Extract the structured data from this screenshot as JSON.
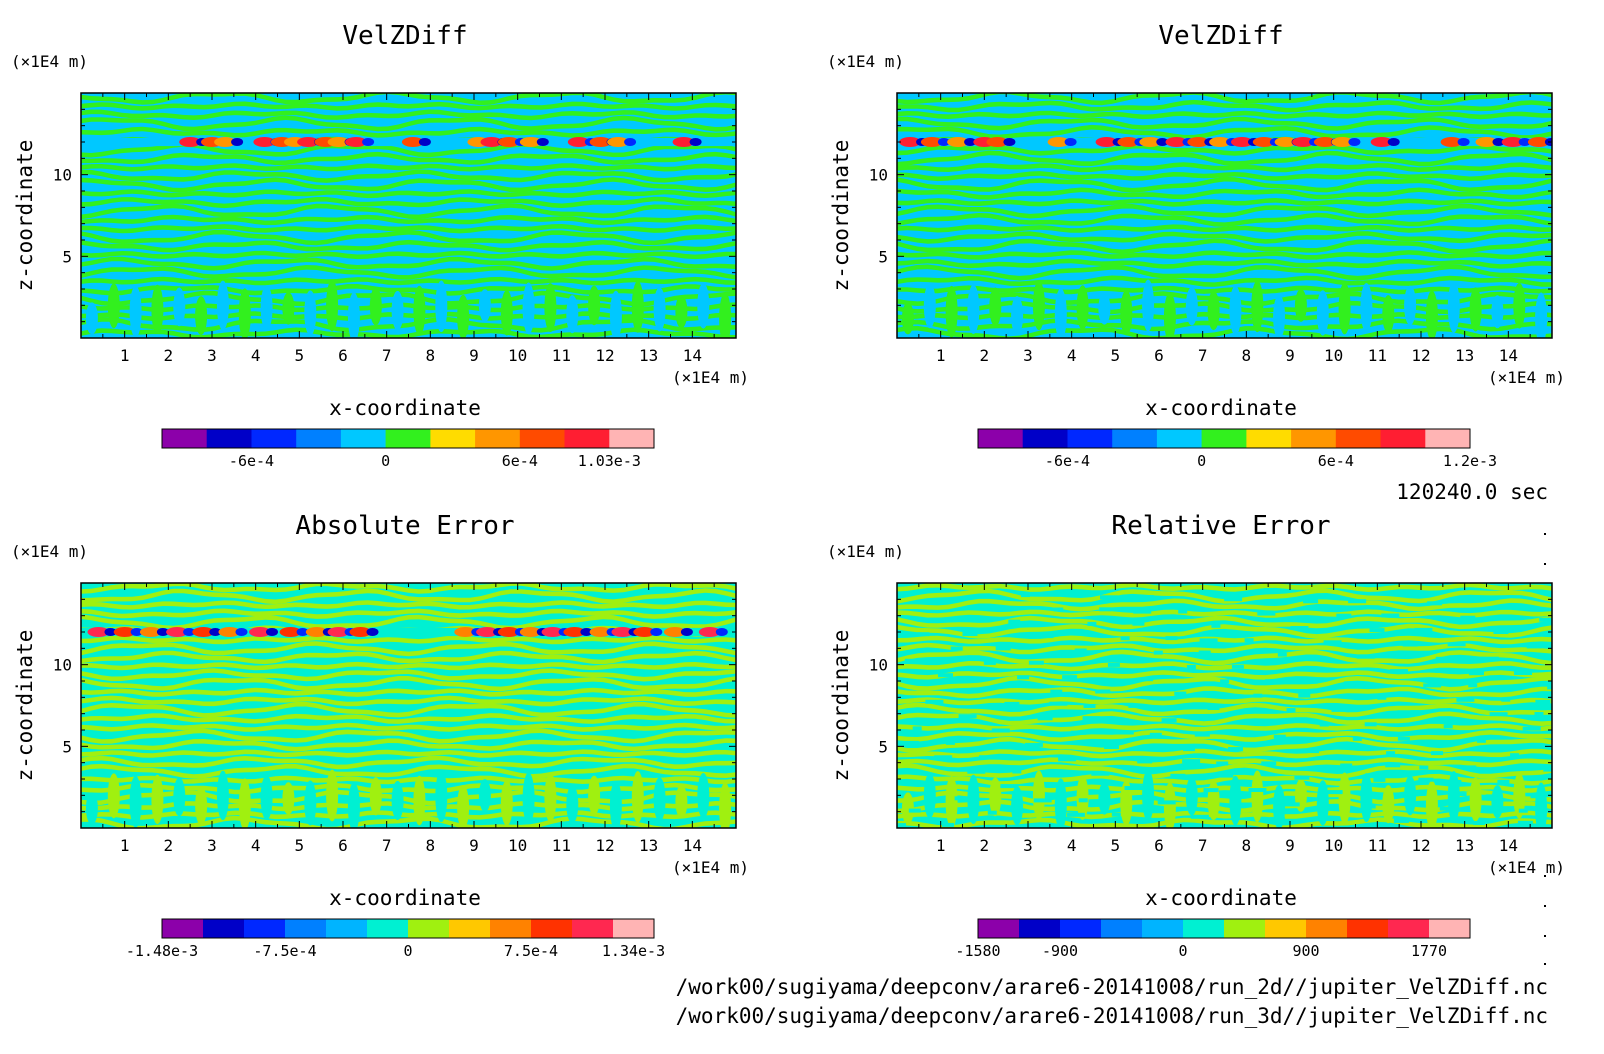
{
  "footer": {
    "time_label": "120240.0 sec",
    "file_lines": [
      "/work00/sugiyama/deepconv/arare6-20141008/run_2d//jupiter_VelZDiff.nc",
      "/work00/sugiyama/deepconv/arare6-20141008/run_3d//jupiter_VelZDiff.nc"
    ]
  },
  "chart_data": [
    {
      "type": "heatmap",
      "title": "VelZDiff",
      "xlabel": "x-coordinate",
      "ylabel": "z-coordinate",
      "x_unit": "(×1E4 m)",
      "y_unit": "(×1E4 m)",
      "xlim": [
        0,
        15
      ],
      "ylim": [
        0,
        15
      ],
      "x_ticks": [
        1,
        2,
        3,
        4,
        5,
        6,
        7,
        8,
        9,
        10,
        11,
        12,
        13,
        14
      ],
      "y_ticks": [
        5,
        10
      ],
      "background_level_colors": [
        "#00c8ff",
        "#32f01e"
      ],
      "band_z": 12,
      "band_spots_x": [
        2.5,
        3.0,
        3.3,
        4.2,
        4.6,
        4.9,
        5.2,
        5.6,
        5.9,
        6.3,
        7.6,
        9.1,
        9.4,
        9.8,
        10.3,
        11.4,
        11.9,
        12.3,
        13.8
      ],
      "colorbar": {
        "colors": [
          "#8c00aa",
          "#0000c8",
          "#0028ff",
          "#0080ff",
          "#00c8ff",
          "#32f01e",
          "#ffdc00",
          "#ff9600",
          "#ff4b00",
          "#ff1e32",
          "#ffb4b4"
        ],
        "tick_labels": [
          "-6e-4",
          "0",
          "6e-4",
          "1.03e-3"
        ],
        "tick_positions": [
          2.0,
          5.0,
          8.0,
          10.0
        ]
      }
    },
    {
      "type": "heatmap",
      "title": "VelZDiff",
      "xlabel": "x-coordinate",
      "ylabel": "z-coordinate",
      "x_unit": "(×1E4 m)",
      "y_unit": "(×1E4 m)",
      "xlim": [
        0,
        15
      ],
      "ylim": [
        0,
        15
      ],
      "x_ticks": [
        1,
        2,
        3,
        4,
        5,
        6,
        7,
        8,
        9,
        10,
        11,
        12,
        13,
        14
      ],
      "y_ticks": [
        5,
        10
      ],
      "background_level_colors": [
        "#00c8ff",
        "#32f01e"
      ],
      "band_z": 12,
      "band_spots_x": [
        0.3,
        0.8,
        1.4,
        2.0,
        2.3,
        3.7,
        4.8,
        5.3,
        5.8,
        6.4,
        6.9,
        7.4,
        7.9,
        8.4,
        8.9,
        9.3,
        9.8,
        10.2,
        11.1,
        12.7,
        13.5,
        14.1,
        14.7
      ],
      "colorbar": {
        "colors": [
          "#8c00aa",
          "#0000c8",
          "#0028ff",
          "#0080ff",
          "#00c8ff",
          "#32f01e",
          "#ffdc00",
          "#ff9600",
          "#ff4b00",
          "#ff1e32",
          "#ffb4b4"
        ],
        "tick_labels": [
          "-6e-4",
          "0",
          "6e-4",
          "1.2e-3"
        ],
        "tick_positions": [
          2.0,
          5.0,
          8.0,
          11.0
        ]
      }
    },
    {
      "type": "heatmap",
      "title": "Absolute Error",
      "xlabel": "x-coordinate",
      "ylabel": "z-coordinate",
      "x_unit": "(×1E4 m)",
      "y_unit": "(×1E4 m)",
      "xlim": [
        0,
        15
      ],
      "ylim": [
        0,
        15
      ],
      "x_ticks": [
        1,
        2,
        3,
        4,
        5,
        6,
        7,
        8,
        9,
        10,
        11,
        12,
        13,
        14
      ],
      "y_ticks": [
        5,
        10
      ],
      "background_level_colors": [
        "#00f0d2",
        "#a0f010"
      ],
      "band_z": 12,
      "band_spots_x": [
        0.4,
        1.0,
        1.6,
        2.2,
        2.8,
        3.4,
        4.1,
        4.8,
        5.4,
        5.9,
        6.4,
        8.8,
        9.3,
        9.8,
        10.3,
        10.8,
        11.3,
        11.9,
        12.4,
        12.9,
        13.6,
        14.4
      ],
      "colorbar": {
        "colors": [
          "#8c00aa",
          "#0000c8",
          "#0028ff",
          "#0080ff",
          "#00b4ff",
          "#00f0d2",
          "#a0f010",
          "#ffc800",
          "#ff8200",
          "#ff3200",
          "#ff2850",
          "#ffb4b4"
        ],
        "tick_labels": [
          "-1.48e-3",
          "-7.5e-4",
          "0",
          "7.5e-4",
          "1.34e-3"
        ],
        "tick_positions": [
          0.0,
          3.0,
          6.0,
          9.0,
          11.5
        ]
      }
    },
    {
      "type": "heatmap",
      "title": "Relative Error",
      "xlabel": "x-coordinate",
      "ylabel": "z-coordinate",
      "x_unit": "(×1E4 m)",
      "y_unit": "(×1E4 m)",
      "xlim": [
        0,
        15
      ],
      "ylim": [
        0,
        15
      ],
      "x_ticks": [
        1,
        2,
        3,
        4,
        5,
        6,
        7,
        8,
        9,
        10,
        11,
        12,
        13,
        14
      ],
      "y_ticks": [
        5,
        10
      ],
      "background_level_colors": [
        "#00f0d2",
        "#a0f010"
      ],
      "band_z": null,
      "band_spots_x": [],
      "colorbar": {
        "colors": [
          "#8c00aa",
          "#0000c8",
          "#0028ff",
          "#0080ff",
          "#00b4ff",
          "#00f0d2",
          "#a0f010",
          "#ffc800",
          "#ff8200",
          "#ff3200",
          "#ff2850",
          "#ffb4b4"
        ],
        "tick_labels": [
          "-1580",
          "-900",
          "0",
          "900",
          "1770"
        ],
        "tick_positions": [
          0.0,
          2.0,
          5.0,
          8.0,
          11.0
        ]
      }
    }
  ]
}
